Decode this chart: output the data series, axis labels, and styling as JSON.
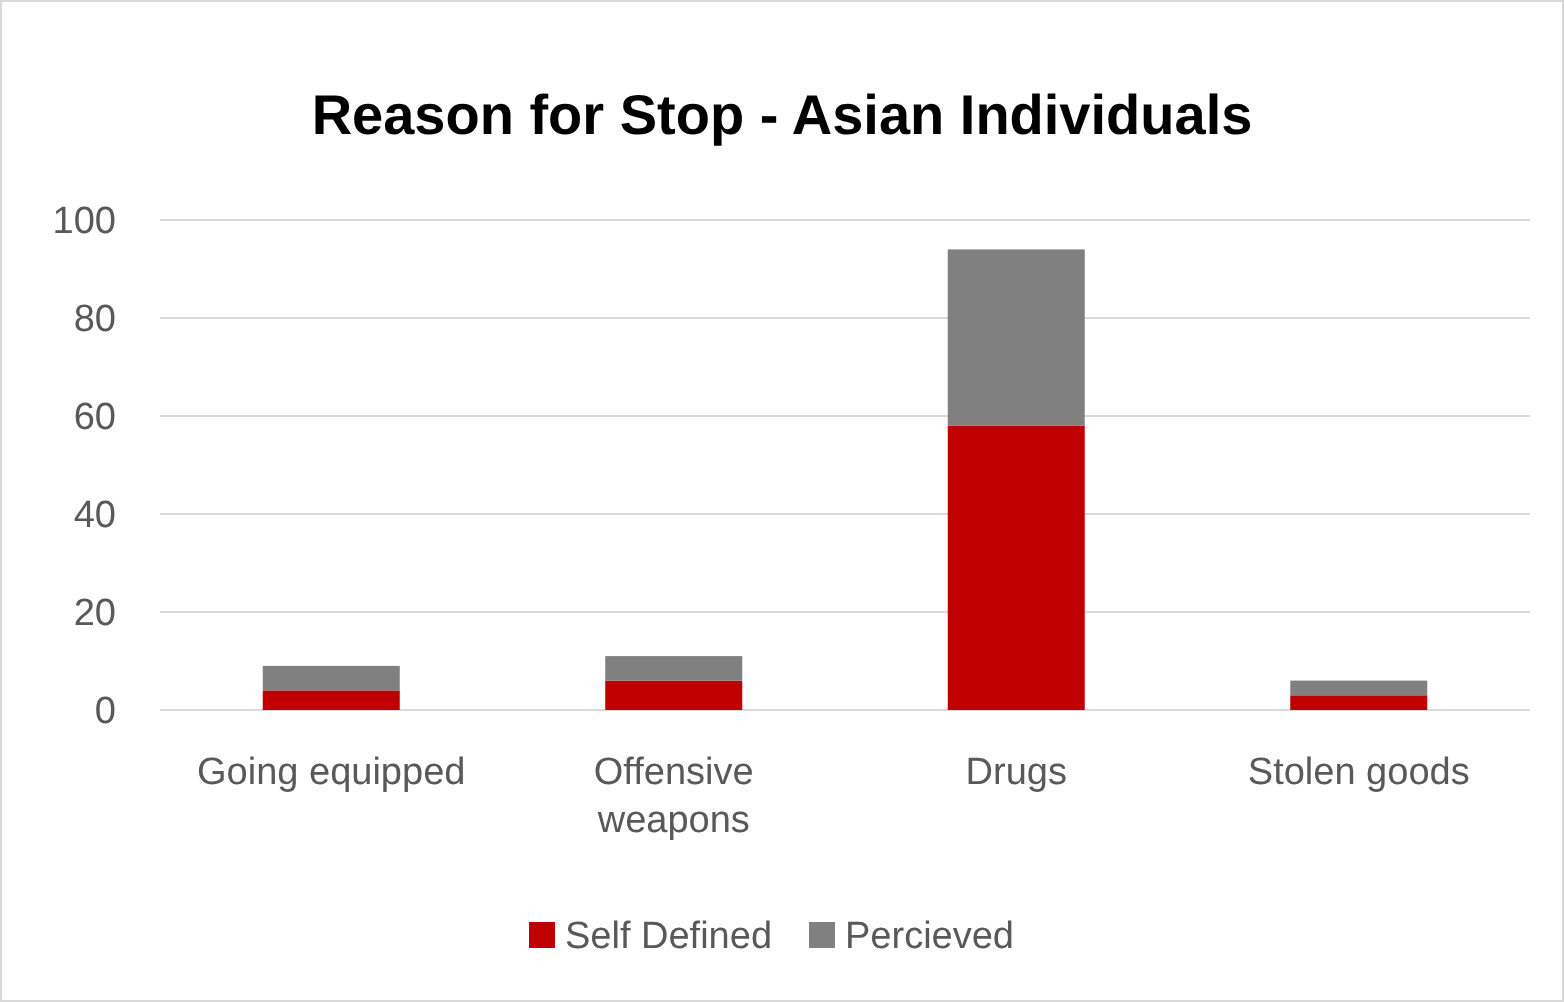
{
  "chart_data": {
    "type": "bar",
    "title": "Reason for Stop - Asian Individuals",
    "categories": [
      "Going equipped",
      "Offensive weapons",
      "Drugs",
      "Stolen goods"
    ],
    "stacked": true,
    "series": [
      {
        "name": "Self Defined",
        "color": "#c00000",
        "values": [
          4,
          6,
          58,
          3
        ]
      },
      {
        "name": "Percieved",
        "color": "#808080",
        "values": [
          5,
          5,
          36,
          3
        ]
      }
    ],
    "ylim": [
      0,
      100
    ],
    "yticks": [
      0,
      20,
      40,
      60,
      80,
      100
    ],
    "grid": "y",
    "legend": "bottom"
  }
}
